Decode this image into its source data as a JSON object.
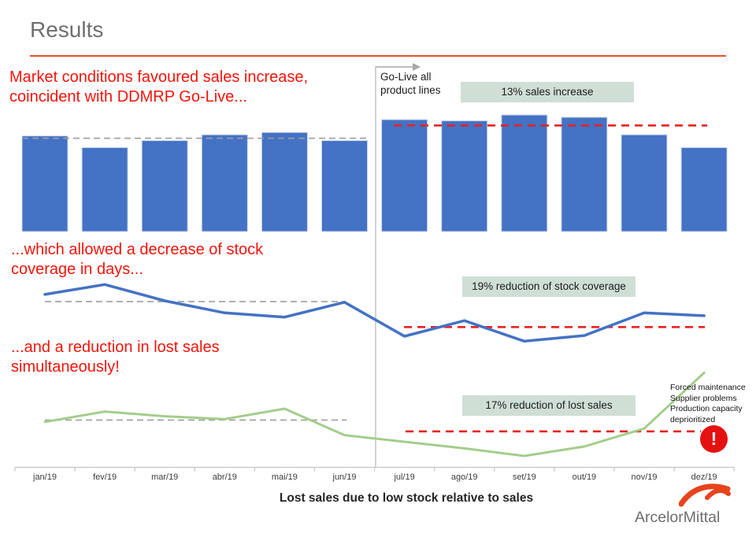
{
  "header": {
    "title": "Results"
  },
  "callouts": [
    {
      "text": "Market conditions favoured sales increase, coincident with DDMRP Go-Live..."
    },
    {
      "text": "...which allowed a decrease of stock coverage in days..."
    },
    {
      "text": "...and a reduction in lost sales simultaneously!"
    }
  ],
  "go_live_label": "Go-Live all product lines",
  "months": [
    "jan/19",
    "fev/19",
    "mar/19",
    "abr/19",
    "mai/19",
    "jun/19",
    "jul/19",
    "ago/19",
    "set/19",
    "out/19",
    "nov/19",
    "dez/19"
  ],
  "caption": "Lost sales due to low stock relative to sales",
  "note_lines": [
    "Forced maintenance",
    "Supplier problems",
    "Production capacity",
    "deprioritized"
  ],
  "alert_glyph": "!",
  "logo_text": "ArcelorMittal",
  "colors": {
    "bar_blue": "#4472c4",
    "bar_border": "#c9d5ee",
    "line_blue": "#4472c4",
    "line_green": "#a4cd8b",
    "dashed_red": "#e82222",
    "dashed_gray": "#9e9e9e",
    "badge_bg": "#cfdfd5",
    "callout_red": "#f2150b",
    "rule_orange": "#e8502e",
    "alert_red": "#e51111",
    "logo_orange": "#e8431c"
  },
  "chart_data": [
    {
      "type": "bar",
      "name": "monthly sales",
      "annotation": "13% sales increase",
      "categories_ref": "months",
      "value_scale": "relative 0-100 (chart has no numeric axis)",
      "values": [
        82,
        72,
        78,
        83,
        85,
        78,
        96,
        95,
        100,
        98,
        83,
        72
      ],
      "reference_lines": [
        {
          "label": "pre-Go-Live average",
          "span": "jan/19-jun/19",
          "style": "gray-dashed",
          "value": 80
        },
        {
          "label": "post-Go-Live average",
          "span": "jul/19-dez/19",
          "style": "red-dashed",
          "value": 91
        }
      ]
    },
    {
      "type": "line",
      "name": "stock coverage in days",
      "annotation": "19% reduction of stock coverage",
      "categories_ref": "months",
      "value_scale": "relative 0-100 (chart has no numeric axis)",
      "values": [
        79,
        93,
        70,
        53,
        47,
        68,
        20,
        42,
        13,
        21,
        53,
        49
      ],
      "reference_lines": [
        {
          "label": "pre-Go-Live average",
          "span": "jan/19-jun/19",
          "style": "gray-dashed",
          "value": 69
        },
        {
          "label": "post-Go-Live average",
          "span": "jul/19-dez/19",
          "style": "red-dashed",
          "value": 33
        }
      ]
    },
    {
      "type": "line",
      "name": "lost sales due to low stock",
      "annotation": "17% reduction of lost sales",
      "categories_ref": "months",
      "value_scale": "relative 0-100 (chart has no numeric axis)",
      "values": [
        41,
        52,
        47,
        44,
        55,
        27,
        20,
        13,
        5,
        15,
        34,
        93
      ],
      "reference_lines": [
        {
          "label": "pre-Go-Live average",
          "span": "jan/19-jun/19",
          "style": "gray-dashed",
          "value": 43
        },
        {
          "label": "post-Go-Live average",
          "span": "jul/19-dez/19",
          "style": "red-dashed",
          "value": 31
        }
      ]
    }
  ],
  "events": {
    "go_live_between": "jun/19 and jul/19"
  }
}
